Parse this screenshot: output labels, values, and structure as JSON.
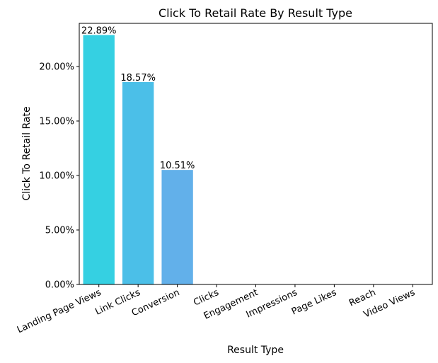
{
  "chart_data": {
    "type": "bar",
    "title": "Click To Retail Rate By Result Type",
    "xlabel": "Result Type",
    "ylabel": "Click To Retail Rate",
    "categories": [
      "Landing Page Views",
      "Link Clicks",
      "Conversion",
      "Clicks",
      "Engagement",
      "Impressions",
      "Page Likes",
      "Reach",
      "Video Views"
    ],
    "values": [
      22.89,
      18.57,
      10.51,
      0,
      0,
      0,
      0,
      0,
      0
    ],
    "value_labels": [
      "22.89%",
      "18.57%",
      "10.51%",
      "",
      "",
      "",
      "",
      "",
      ""
    ],
    "bar_colors": [
      "#35d0e2",
      "#4bbfe8",
      "#62b0ea",
      "#7aa0ec",
      "#8f90ee",
      "#a681f0",
      "#bb72f2",
      "#d263f4",
      "#e656f6"
    ],
    "ylim": [
      0,
      23.96
    ],
    "yticks": [
      0,
      5,
      10,
      15,
      20
    ],
    "ytick_labels": [
      "0.00%",
      "5.00%",
      "10.00%",
      "15.00%",
      "20.00%"
    ],
    "grid": false,
    "legend": "none"
  }
}
